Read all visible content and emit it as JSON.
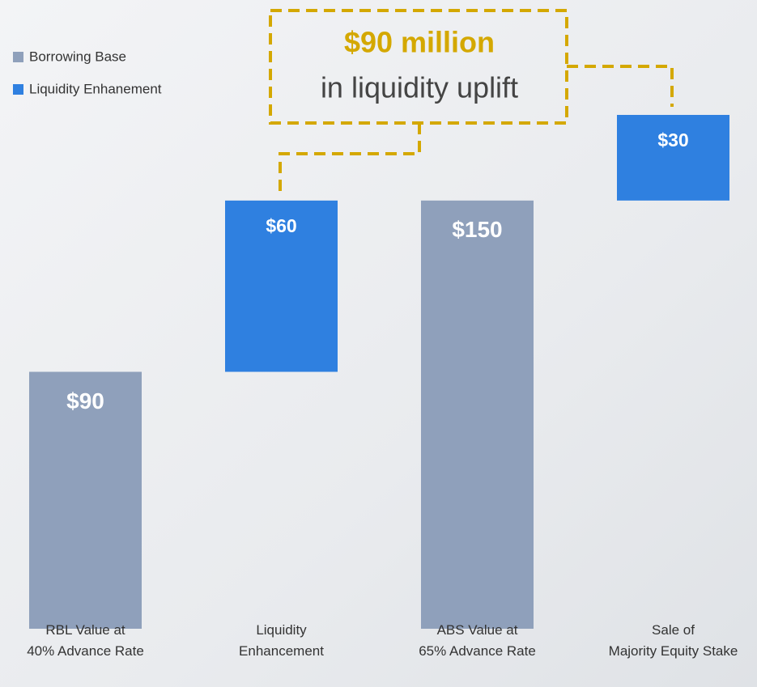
{
  "chart_data": {
    "type": "waterfall",
    "categories": [
      [
        "RBL Value at",
        "40% Advance Rate"
      ],
      [
        "Liquidity",
        "Enhancement"
      ],
      [
        "ABS Value at",
        "65% Advance Rate"
      ],
      [
        "Sale of",
        "Majority Equity Stake"
      ]
    ],
    "series": [
      {
        "name": "Borrowing Base",
        "color": "#8fa0bb",
        "values": [
          90,
          null,
          150,
          null
        ],
        "value_labels": [
          "$90",
          null,
          "$150",
          null
        ]
      },
      {
        "name": "Liquidity Enhanement",
        "color": "#2f80e0",
        "values": [
          null,
          60,
          null,
          30
        ],
        "value_labels": [
          null,
          "$60",
          null,
          "$30"
        ]
      }
    ],
    "annotation": {
      "title": "$90 million",
      "text": "in liquidity uplift"
    }
  }
}
